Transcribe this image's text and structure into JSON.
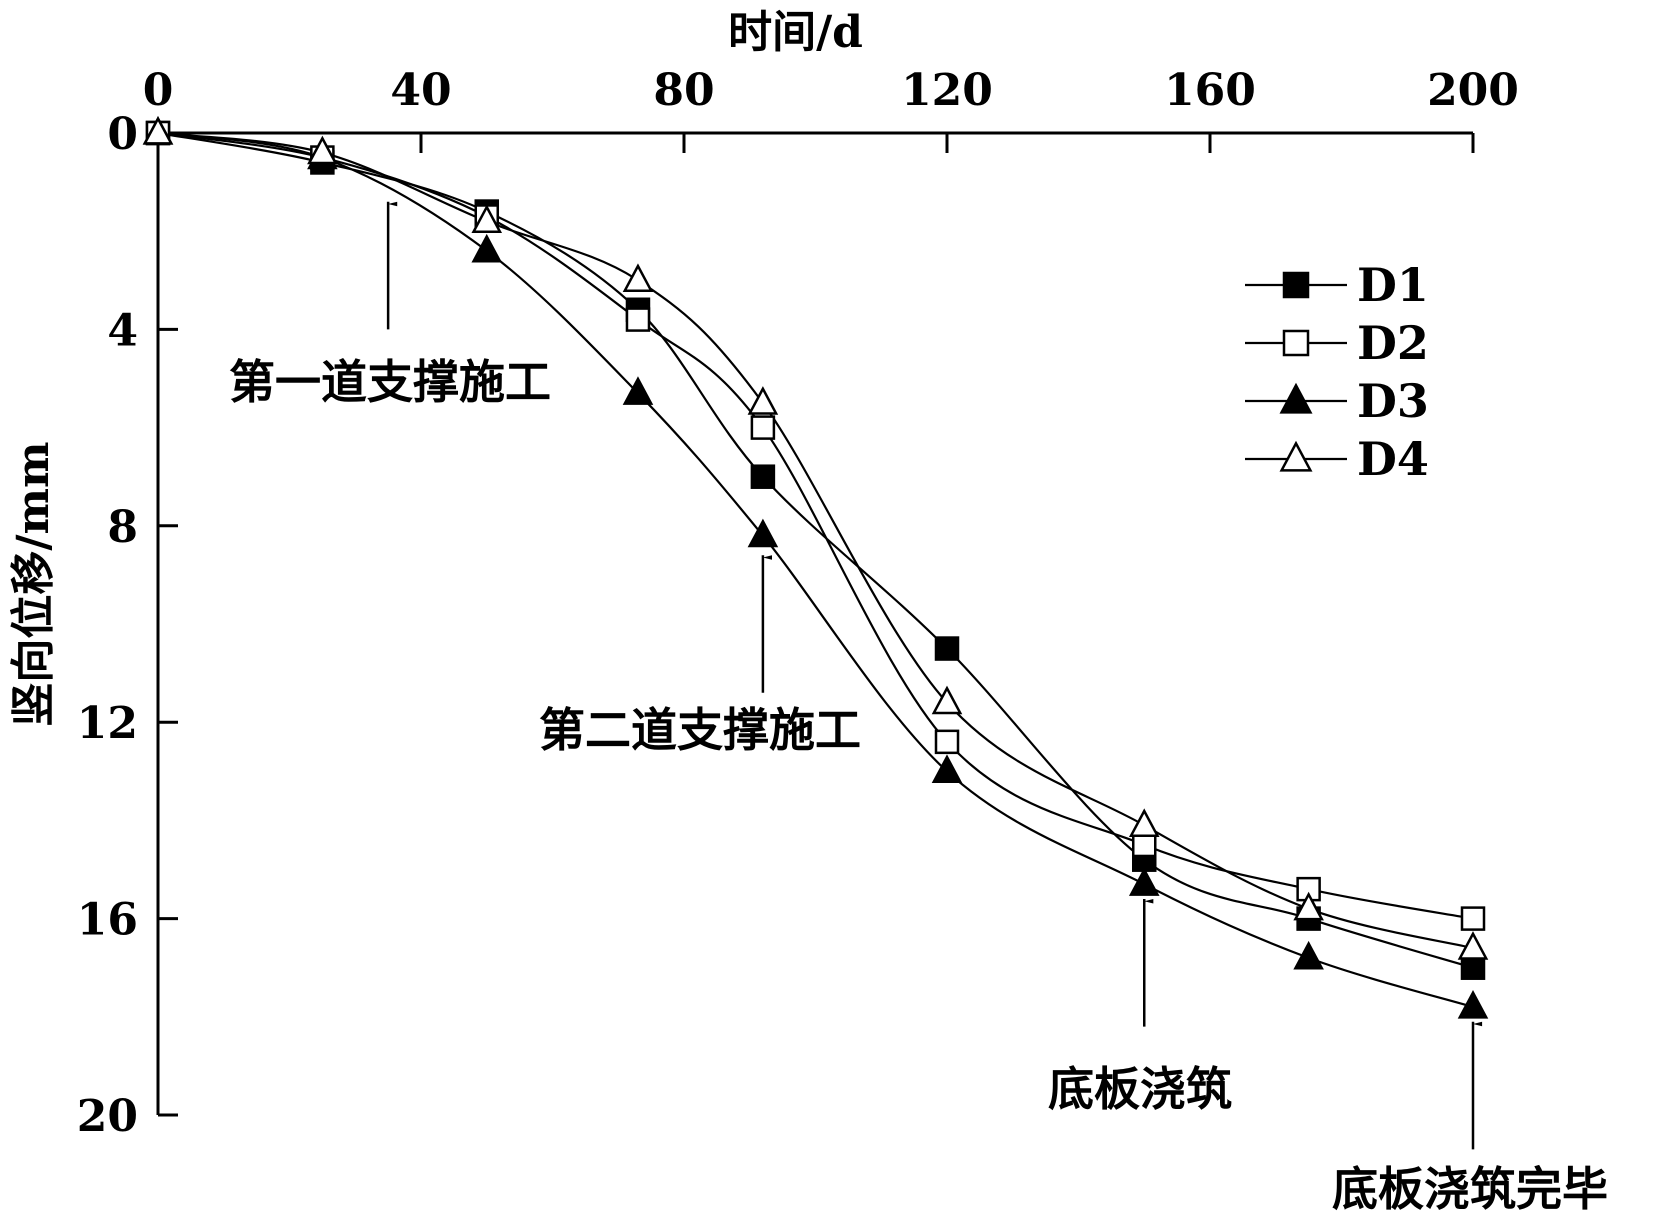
{
  "chart_data": {
    "type": "line",
    "xlabel": "时间/d",
    "ylabel": "竖向位移/mm",
    "xlim": [
      0,
      200
    ],
    "ylim": [
      0,
      20
    ],
    "y_inverted": true,
    "x_axis_position": "top",
    "xticks": [
      0,
      40,
      80,
      120,
      160,
      200
    ],
    "yticks": [
      0,
      4,
      8,
      12,
      16,
      20
    ],
    "grid": false,
    "legend_position": "top-right",
    "series": [
      {
        "name": "D1",
        "marker": "square-filled",
        "x": [
          0,
          25,
          50,
          73,
          92,
          120,
          150,
          175,
          200
        ],
        "y": [
          0,
          0.6,
          1.6,
          3.6,
          7.0,
          10.5,
          14.8,
          16.0,
          17.0
        ]
      },
      {
        "name": "D2",
        "marker": "square-open",
        "x": [
          0,
          25,
          50,
          73,
          92,
          120,
          150,
          175,
          200
        ],
        "y": [
          0,
          0.5,
          1.7,
          3.8,
          6.0,
          12.4,
          14.5,
          15.4,
          16.0
        ]
      },
      {
        "name": "D3",
        "marker": "triangle-filled",
        "x": [
          0,
          25,
          50,
          73,
          92,
          120,
          150,
          175,
          200
        ],
        "y": [
          0,
          0.5,
          2.4,
          5.3,
          8.2,
          13.0,
          15.3,
          16.8,
          17.8
        ]
      },
      {
        "name": "D4",
        "marker": "triangle-open",
        "x": [
          0,
          25,
          50,
          73,
          92,
          120,
          150,
          175,
          200
        ],
        "y": [
          0,
          0.4,
          1.8,
          3.0,
          5.5,
          11.6,
          14.1,
          15.8,
          16.6
        ]
      }
    ],
    "annotations": [
      {
        "text": "第一道支撑施工",
        "arrow_x": 35,
        "arrow_from_y": 4.0,
        "arrow_to_y": 1.4
      },
      {
        "text": "第二道支撑施工",
        "arrow_x": 92,
        "arrow_from_y": 11.4,
        "arrow_to_y": 8.6
      },
      {
        "text": "底板浇筑",
        "arrow_x": 150,
        "arrow_from_y": 18.2,
        "arrow_to_y": 15.6
      },
      {
        "text": "底板浇筑完毕",
        "arrow_x": 200,
        "arrow_from_y": 20.7,
        "arrow_to_y": 18.1
      }
    ]
  }
}
